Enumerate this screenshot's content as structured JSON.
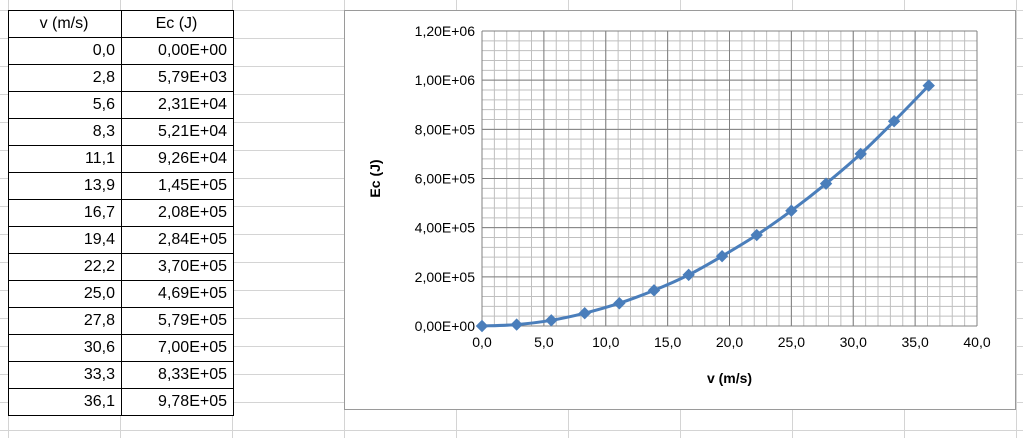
{
  "table": {
    "headers": [
      "v (m/s)",
      "Ec (J)"
    ],
    "rows": [
      [
        "0,0",
        "0,00E+00"
      ],
      [
        "2,8",
        "5,79E+03"
      ],
      [
        "5,6",
        "2,31E+04"
      ],
      [
        "8,3",
        "5,21E+04"
      ],
      [
        "11,1",
        "9,26E+04"
      ],
      [
        "13,9",
        "1,45E+05"
      ],
      [
        "16,7",
        "2,08E+05"
      ],
      [
        "19,4",
        "2,84E+05"
      ],
      [
        "22,2",
        "3,70E+05"
      ],
      [
        "25,0",
        "4,69E+05"
      ],
      [
        "27,8",
        "5,79E+05"
      ],
      [
        "30,6",
        "7,00E+05"
      ],
      [
        "33,3",
        "8,33E+05"
      ],
      [
        "36,1",
        "9,78E+05"
      ]
    ]
  },
  "chart_data": {
    "type": "scatter",
    "xlabel": "v (m/s)",
    "ylabel": "Ec (J)",
    "xlim": [
      0,
      40
    ],
    "ylim": [
      0,
      1200000
    ],
    "x_tick_labels": [
      "0,0",
      "5,0",
      "10,0",
      "15,0",
      "20,0",
      "25,0",
      "30,0",
      "35,0",
      "40,0"
    ],
    "y_tick_labels": [
      "0,00E+00",
      "2,00E+05",
      "4,00E+05",
      "6,00E+05",
      "8,00E+05",
      "1,00E+06",
      "1,20E+06"
    ],
    "x_minor_step": 1,
    "y_minor_step": 40000,
    "grid": true,
    "series": [
      {
        "color": "#4a7ebb",
        "marker": "diamond",
        "x": [
          0.0,
          2.8,
          5.6,
          8.3,
          11.1,
          13.9,
          16.7,
          19.4,
          22.2,
          25.0,
          27.8,
          30.6,
          33.3,
          36.1
        ],
        "y": [
          0,
          5790,
          23100,
          52100,
          92600,
          145000,
          208000,
          284000,
          370000,
          469000,
          579000,
          700000,
          833000,
          978000
        ]
      }
    ]
  }
}
